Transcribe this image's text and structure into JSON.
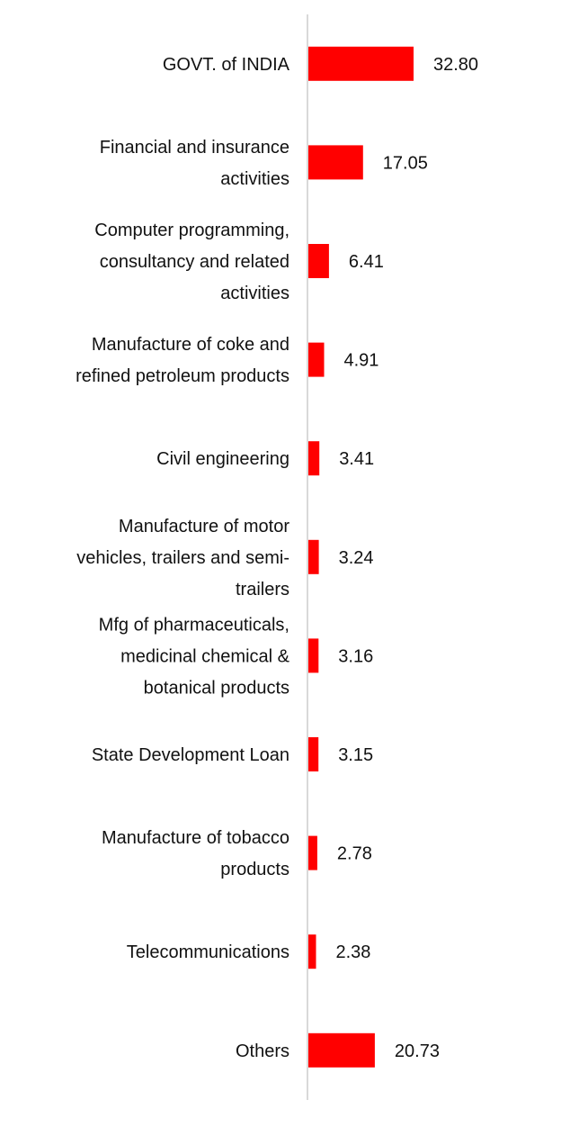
{
  "chart_data": {
    "type": "bar",
    "orientation": "horizontal",
    "categories": [
      "GOVT. of INDIA",
      "Financial and insurance activities",
      "Computer programming, consultancy and related activities",
      "Manufacture of coke and refined petroleum products",
      "Civil engineering",
      "Manufacture of motor vehicles, trailers and semi-trailers",
      "Mfg of pharmaceuticals, medicinal chemical & botanical products",
      "State Development Loan",
      "Manufacture of tobacco products",
      "Telecommunications",
      "Others"
    ],
    "category_lines": [
      [
        "GOVT. of INDIA"
      ],
      [
        "Financial and insurance",
        "activities"
      ],
      [
        "Computer programming,",
        "consultancy and related",
        "activities"
      ],
      [
        "Manufacture of coke and",
        "refined petroleum products"
      ],
      [
        "Civil engineering"
      ],
      [
        "Manufacture of motor",
        "vehicles, trailers and semi-",
        "trailers"
      ],
      [
        "Mfg of pharmaceuticals,",
        "medicinal chemical &",
        "botanical products"
      ],
      [
        "State Development Loan"
      ],
      [
        "Manufacture of tobacco",
        "products"
      ],
      [
        "Telecommunications"
      ],
      [
        "Others"
      ]
    ],
    "values": [
      32.8,
      17.05,
      6.41,
      4.91,
      3.41,
      3.24,
      3.16,
      3.15,
      2.78,
      2.38,
      20.73
    ],
    "value_labels": [
      "32.80",
      "17.05",
      "6.41",
      "4.91",
      "3.41",
      "3.24",
      "3.16",
      "3.15",
      "2.78",
      "2.38",
      "20.73"
    ],
    "title": "",
    "xlabel": "",
    "ylabel": "",
    "xlim": [
      0,
      40
    ],
    "grid": false,
    "legend": "none",
    "bar_color": "#ff0000",
    "axis_color": "#d9d9d9"
  }
}
